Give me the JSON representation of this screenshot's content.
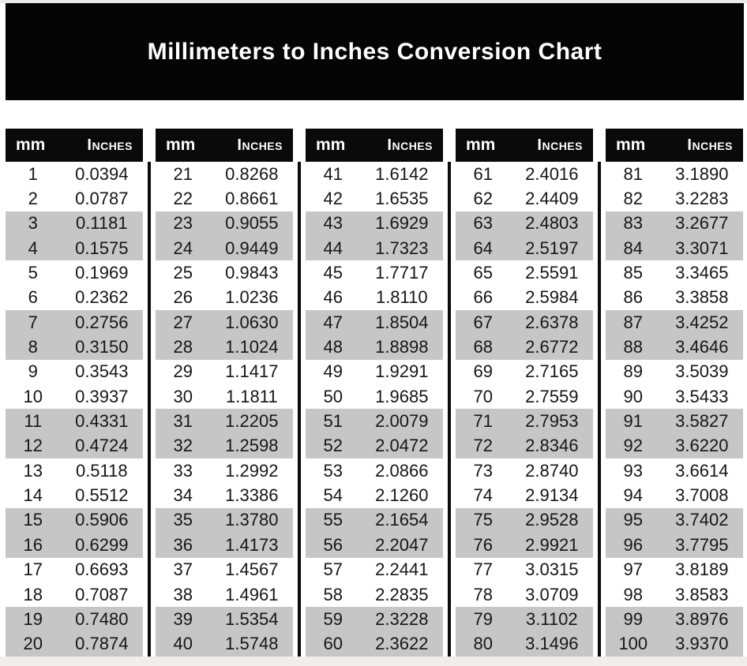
{
  "title": "Millimeters to Inches Conversion Chart",
  "table": {
    "col_headers": {
      "mm": "mm",
      "inches": "Inches"
    },
    "groups": [
      {
        "rows": [
          [
            "1",
            "0.0394"
          ],
          [
            "2",
            "0.0787"
          ],
          [
            "3",
            "0.1181"
          ],
          [
            "4",
            "0.1575"
          ],
          [
            "5",
            "0.1969"
          ],
          [
            "6",
            "0.2362"
          ],
          [
            "7",
            "0.2756"
          ],
          [
            "8",
            "0.3150"
          ],
          [
            "9",
            "0.3543"
          ],
          [
            "10",
            "0.3937"
          ],
          [
            "11",
            "0.4331"
          ],
          [
            "12",
            "0.4724"
          ],
          [
            "13",
            "0.5118"
          ],
          [
            "14",
            "0.5512"
          ],
          [
            "15",
            "0.5906"
          ],
          [
            "16",
            "0.6299"
          ],
          [
            "17",
            "0.6693"
          ],
          [
            "18",
            "0.7087"
          ],
          [
            "19",
            "0.7480"
          ],
          [
            "20",
            "0.7874"
          ]
        ]
      },
      {
        "rows": [
          [
            "21",
            "0.8268"
          ],
          [
            "22",
            "0.8661"
          ],
          [
            "23",
            "0.9055"
          ],
          [
            "24",
            "0.9449"
          ],
          [
            "25",
            "0.9843"
          ],
          [
            "26",
            "1.0236"
          ],
          [
            "27",
            "1.0630"
          ],
          [
            "28",
            "1.1024"
          ],
          [
            "29",
            "1.1417"
          ],
          [
            "30",
            "1.1811"
          ],
          [
            "31",
            "1.2205"
          ],
          [
            "32",
            "1.2598"
          ],
          [
            "33",
            "1.2992"
          ],
          [
            "34",
            "1.3386"
          ],
          [
            "35",
            "1.3780"
          ],
          [
            "36",
            "1.4173"
          ],
          [
            "37",
            "1.4567"
          ],
          [
            "38",
            "1.4961"
          ],
          [
            "39",
            "1.5354"
          ],
          [
            "40",
            "1.5748"
          ]
        ]
      },
      {
        "rows": [
          [
            "41",
            "1.6142"
          ],
          [
            "42",
            "1.6535"
          ],
          [
            "43",
            "1.6929"
          ],
          [
            "44",
            "1.7323"
          ],
          [
            "45",
            "1.7717"
          ],
          [
            "46",
            "1.8110"
          ],
          [
            "47",
            "1.8504"
          ],
          [
            "48",
            "1.8898"
          ],
          [
            "49",
            "1.9291"
          ],
          [
            "50",
            "1.9685"
          ],
          [
            "51",
            "2.0079"
          ],
          [
            "52",
            "2.0472"
          ],
          [
            "53",
            "2.0866"
          ],
          [
            "54",
            "2.1260"
          ],
          [
            "55",
            "2.1654"
          ],
          [
            "56",
            "2.2047"
          ],
          [
            "57",
            "2.2441"
          ],
          [
            "58",
            "2.2835"
          ],
          [
            "59",
            "2.3228"
          ],
          [
            "60",
            "2.3622"
          ]
        ]
      },
      {
        "rows": [
          [
            "61",
            "2.4016"
          ],
          [
            "62",
            "2.4409"
          ],
          [
            "63",
            "2.4803"
          ],
          [
            "64",
            "2.5197"
          ],
          [
            "65",
            "2.5591"
          ],
          [
            "66",
            "2.5984"
          ],
          [
            "67",
            "2.6378"
          ],
          [
            "68",
            "2.6772"
          ],
          [
            "69",
            "2.7165"
          ],
          [
            "70",
            "2.7559"
          ],
          [
            "71",
            "2.7953"
          ],
          [
            "72",
            "2.8346"
          ],
          [
            "73",
            "2.8740"
          ],
          [
            "74",
            "2.9134"
          ],
          [
            "75",
            "2.9528"
          ],
          [
            "76",
            "2.9921"
          ],
          [
            "77",
            "3.0315"
          ],
          [
            "78",
            "3.0709"
          ],
          [
            "79",
            "3.1102"
          ],
          [
            "80",
            "3.1496"
          ]
        ]
      },
      {
        "rows": [
          [
            "81",
            "3.1890"
          ],
          [
            "82",
            "3.2283"
          ],
          [
            "83",
            "3.2677"
          ],
          [
            "84",
            "3.3071"
          ],
          [
            "85",
            "3.3465"
          ],
          [
            "86",
            "3.3858"
          ],
          [
            "87",
            "3.4252"
          ],
          [
            "88",
            "3.4646"
          ],
          [
            "89",
            "3.5039"
          ],
          [
            "90",
            "3.5433"
          ],
          [
            "91",
            "3.5827"
          ],
          [
            "92",
            "3.6220"
          ],
          [
            "93",
            "3.6614"
          ],
          [
            "94",
            "3.7008"
          ],
          [
            "95",
            "3.7402"
          ],
          [
            "96",
            "3.7795"
          ],
          [
            "97",
            "3.8189"
          ],
          [
            "98",
            "3.8583"
          ],
          [
            "99",
            "3.8976"
          ],
          [
            "100",
            "3.9370"
          ]
        ]
      }
    ]
  },
  "colors": {
    "banner_bg": "#050505",
    "header_bg": "#0a0a0a",
    "stripe_gray": "#c6c6c6",
    "text": "#161616",
    "header_text": "#ffffff"
  }
}
